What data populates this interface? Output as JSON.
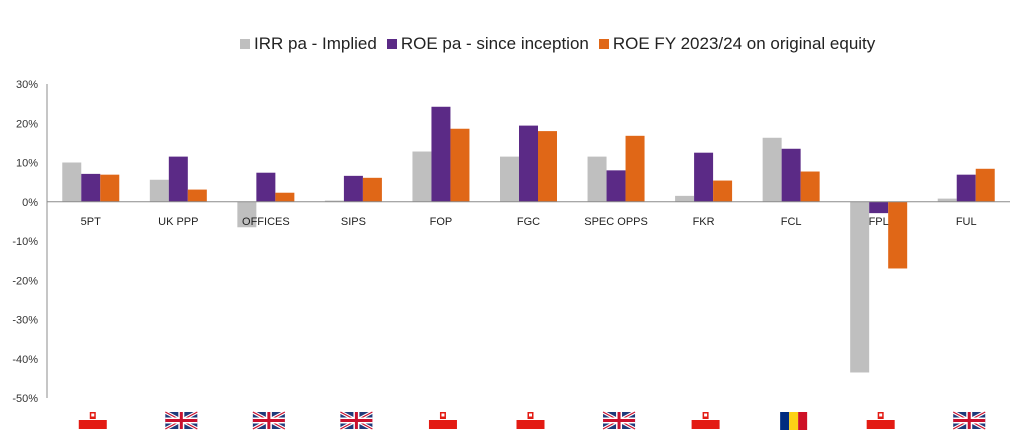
{
  "chart_data": {
    "type": "bar",
    "title": "",
    "xlabel": "",
    "ylabel": "",
    "ylim": [
      -50,
      30
    ],
    "yticks": [
      30,
      20,
      10,
      0,
      -10,
      -20,
      -30,
      -40,
      -50
    ],
    "ytick_labels": [
      "30%",
      "20%",
      "10%",
      "0%",
      "-10%",
      "-20%",
      "-30%",
      "-40%",
      "-50%"
    ],
    "grid": false,
    "legend_position": "top-center",
    "categories": [
      "5PT",
      "UK PPP",
      "OFFICES",
      "SIPS",
      "FOP",
      "FGC",
      "SPEC OPPS",
      "FKR",
      "FCL",
      "FPL",
      "FUL"
    ],
    "series": [
      {
        "name": "IRR pa - Implied",
        "color": "#bfbfbf",
        "values": [
          10.0,
          5.6,
          -6.5,
          0.3,
          12.8,
          11.5,
          11.5,
          1.5,
          16.3,
          -43.5,
          0.8
        ]
      },
      {
        "name": "ROE pa - since inception",
        "color": "#5b2a86",
        "values": [
          7.1,
          11.5,
          7.4,
          6.6,
          24.2,
          19.4,
          8.0,
          12.5,
          13.5,
          -2.9,
          6.9
        ]
      },
      {
        "name": "ROE FY 2023/24 on original equity",
        "color": "#e06717",
        "values": [
          6.9,
          3.1,
          2.3,
          6.1,
          18.6,
          18.0,
          16.8,
          5.4,
          7.7,
          -17.0,
          8.4
        ]
      }
    ],
    "flag_icons": [
      "poland",
      "uk",
      "uk",
      "uk",
      "poland",
      "poland",
      "uk",
      "poland",
      "romania",
      "poland",
      "uk"
    ]
  }
}
